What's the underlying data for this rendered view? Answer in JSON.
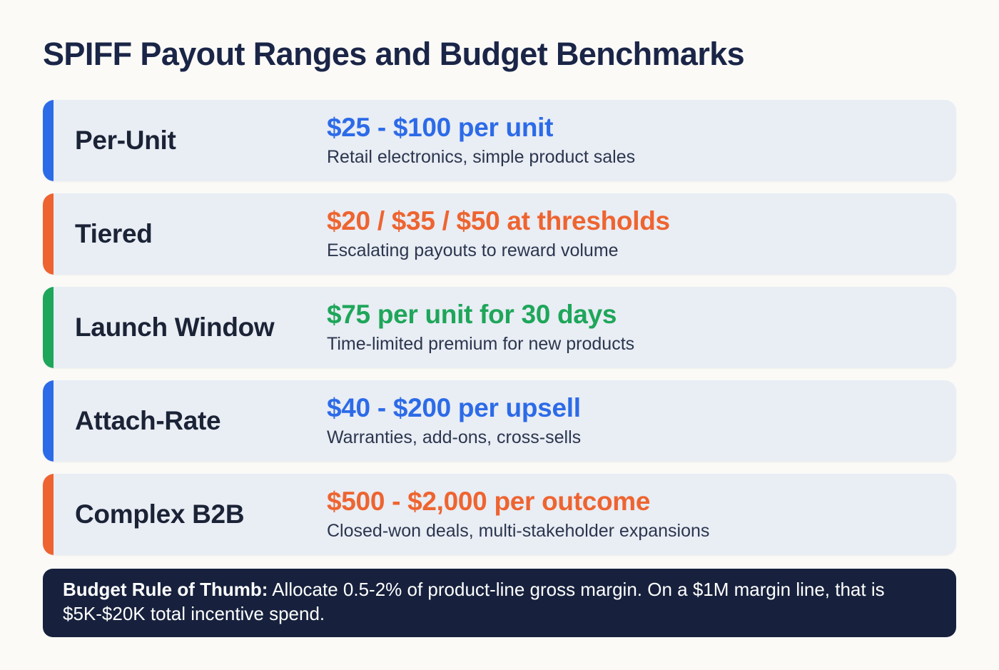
{
  "title": "SPIFF Payout Ranges and Budget Benchmarks",
  "colors": {
    "page_background": "#fbfaf7",
    "card_background": "#e9edf4",
    "title_text": "#1a2547",
    "label_text": "#1b2336",
    "description_text": "#2b364e",
    "footer_background": "#17213d",
    "footer_text": "#ffffff",
    "blue": "#2c6be8",
    "orange": "#ee6430",
    "green": "#1ea65a"
  },
  "rows": [
    {
      "label": "Per-Unit",
      "value": "$25 - $100 per unit",
      "description": "Retail electronics, simple product sales",
      "accent_color": "#2c6be8",
      "value_color": "#2c6be8"
    },
    {
      "label": "Tiered",
      "value": "$20 / $35 / $50 at thresholds",
      "description": "Escalating payouts to reward volume",
      "accent_color": "#ee6430",
      "value_color": "#ee6430"
    },
    {
      "label": "Launch Window",
      "value": "$75 per unit for 30 days",
      "description": "Time-limited premium for new products",
      "accent_color": "#1ea65a",
      "value_color": "#1ea65a"
    },
    {
      "label": "Attach-Rate",
      "value": "$40 - $200 per upsell",
      "description": "Warranties, add-ons, cross-sells",
      "accent_color": "#2c6be8",
      "value_color": "#2c6be8"
    },
    {
      "label": "Complex B2B",
      "value": "$500 - $2,000 per outcome",
      "description": "Closed-won deals, multi-stakeholder expansions",
      "accent_color": "#ee6430",
      "value_color": "#ee6430"
    }
  ],
  "footer": {
    "bold_label": "Budget Rule of Thumb:",
    "text": " Allocate 0.5-2% of product-line gross margin. On a $1M margin line, that is $5K-$20K total incentive spend."
  }
}
